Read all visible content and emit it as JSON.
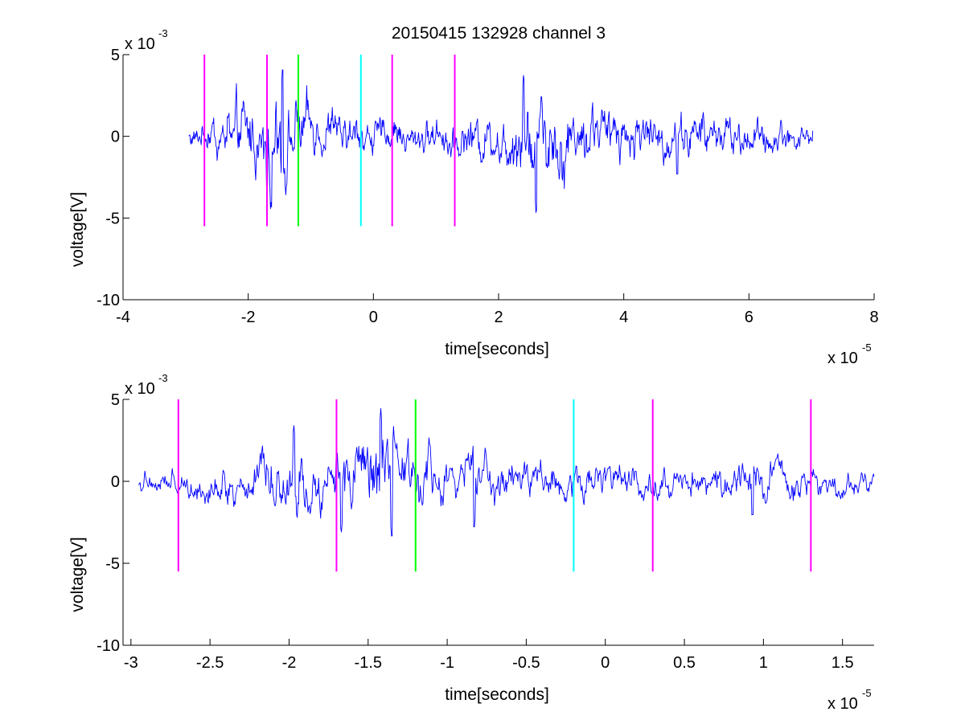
{
  "figure": {
    "background": "#ffffff"
  },
  "chart_data": [
    {
      "type": "line",
      "title": "20150415 132928 channel 3",
      "xlabel": "time[seconds]",
      "ylabel": "voltage[V]",
      "x_exponent_label": "x 10",
      "x_exponent": "-5",
      "y_exponent_label": "x 10",
      "y_exponent": "-3",
      "xlim": [
        -4,
        8
      ],
      "ylim": [
        -10,
        5
      ],
      "x_ticks": [
        -4,
        -2,
        0,
        2,
        4,
        6,
        8
      ],
      "x_tick_labels": [
        "-4",
        "-2",
        "0",
        "2",
        "4",
        "6",
        "8"
      ],
      "y_ticks": [
        -10,
        -5,
        0,
        5
      ],
      "y_tick_labels": [
        "-10",
        "-5",
        "0",
        "5"
      ],
      "grid": false,
      "series": [
        {
          "color": "#0000ff",
          "x_range": [
            -2.95,
            7.02
          ],
          "envelope": [
            [
              -2.9,
              1.0
            ],
            [
              -2.5,
              2.0
            ],
            [
              -2.2,
              3.0
            ],
            [
              -1.9,
              3.5
            ],
            [
              -1.6,
              4.2
            ],
            [
              -1.3,
              3.5
            ],
            [
              -1.0,
              2.5
            ],
            [
              -0.5,
              2.0
            ],
            [
              0.0,
              1.8
            ],
            [
              0.5,
              1.5
            ],
            [
              1.0,
              1.6
            ],
            [
              1.5,
              1.8
            ],
            [
              2.0,
              2.2
            ],
            [
              2.3,
              3.5
            ],
            [
              2.5,
              4.2
            ],
            [
              2.8,
              3.8
            ],
            [
              3.2,
              3.0
            ],
            [
              3.8,
              2.4
            ],
            [
              4.5,
              2.0
            ],
            [
              5.0,
              2.0
            ],
            [
              5.5,
              1.8
            ],
            [
              6.0,
              1.6
            ],
            [
              6.5,
              1.5
            ],
            [
              7.0,
              1.0
            ]
          ],
          "extremes": [
            {
              "x": -1.45,
              "y": 4.4
            },
            {
              "x": -1.7,
              "y": -3.5
            },
            {
              "x": -1.4,
              "y": -3.6
            },
            {
              "x": 2.4,
              "y": 3.9
            },
            {
              "x": 2.6,
              "y": -5.0
            },
            {
              "x": 4.85,
              "y": -3.0
            }
          ]
        }
      ],
      "vertical_markers": [
        {
          "x": -2.7,
          "color": "#ff00ff",
          "ymin": -5.5,
          "ymax": 5
        },
        {
          "x": -1.7,
          "color": "#ff00ff",
          "ymin": -5.5,
          "ymax": 5
        },
        {
          "x": -1.2,
          "color": "#00ff00",
          "ymin": -5.5,
          "ymax": 5
        },
        {
          "x": -0.2,
          "color": "#00ffff",
          "ymin": -5.5,
          "ymax": 5
        },
        {
          "x": 0.3,
          "color": "#ff00ff",
          "ymin": -5.5,
          "ymax": 5
        },
        {
          "x": 1.3,
          "color": "#ff00ff",
          "ymin": -5.5,
          "ymax": 5
        }
      ]
    },
    {
      "type": "line",
      "title": "",
      "xlabel": "time[seconds]",
      "ylabel": "voltage[V]",
      "x_exponent_label": "x 10",
      "x_exponent": "-5",
      "y_exponent_label": "x 10",
      "y_exponent": "-3",
      "xlim": [
        -3.05,
        1.7
      ],
      "ylim": [
        -10,
        5
      ],
      "x_ticks": [
        -3,
        -2.5,
        -2,
        -1.5,
        -1,
        -0.5,
        0,
        0.5,
        1,
        1.5
      ],
      "x_tick_labels": [
        "-3",
        "-2.5",
        "-2",
        "-1.5",
        "-1",
        "-0.5",
        "0",
        "0.5",
        "1",
        "1.5"
      ],
      "y_ticks": [
        -10,
        -5,
        0,
        5
      ],
      "y_tick_labels": [
        "-10",
        "-5",
        "0",
        "5"
      ],
      "grid": false,
      "series": [
        {
          "color": "#0000ff",
          "x_range": [
            -2.95,
            1.7
          ],
          "envelope": [
            [
              -2.95,
              1.0
            ],
            [
              -2.7,
              1.2
            ],
            [
              -2.4,
              1.6
            ],
            [
              -2.2,
              2.6
            ],
            [
              -2.0,
              3.3
            ],
            [
              -1.85,
              2.6
            ],
            [
              -1.65,
              3.0
            ],
            [
              -1.5,
              3.4
            ],
            [
              -1.4,
              4.3
            ],
            [
              -1.3,
              3.2
            ],
            [
              -1.2,
              2.8
            ],
            [
              -1.0,
              2.0
            ],
            [
              -0.8,
              2.6
            ],
            [
              -0.5,
              1.8
            ],
            [
              -0.2,
              1.5
            ],
            [
              0.0,
              1.5
            ],
            [
              0.3,
              1.5
            ],
            [
              0.6,
              1.4
            ],
            [
              0.9,
              1.8
            ],
            [
              1.2,
              1.5
            ],
            [
              1.5,
              1.2
            ],
            [
              1.7,
              1.0
            ]
          ],
          "extremes": [
            {
              "x": -1.42,
              "y": 4.5
            },
            {
              "x": -1.97,
              "y": 3.5
            },
            {
              "x": -1.67,
              "y": -3.2
            },
            {
              "x": -1.35,
              "y": -3.6
            },
            {
              "x": -0.83,
              "y": -3.0
            },
            {
              "x": 0.93,
              "y": -2.9
            }
          ]
        }
      ],
      "vertical_markers": [
        {
          "x": -2.7,
          "color": "#ff00ff",
          "ymin": -5.5,
          "ymax": 5
        },
        {
          "x": -1.7,
          "color": "#ff00ff",
          "ymin": -5.5,
          "ymax": 5
        },
        {
          "x": -1.2,
          "color": "#00ff00",
          "ymin": -5.5,
          "ymax": 5
        },
        {
          "x": -0.2,
          "color": "#00ffff",
          "ymin": -5.5,
          "ymax": 5
        },
        {
          "x": 0.3,
          "color": "#ff00ff",
          "ymin": -5.5,
          "ymax": 5
        },
        {
          "x": 1.3,
          "color": "#ff00ff",
          "ymin": -5.5,
          "ymax": 5
        }
      ]
    }
  ]
}
